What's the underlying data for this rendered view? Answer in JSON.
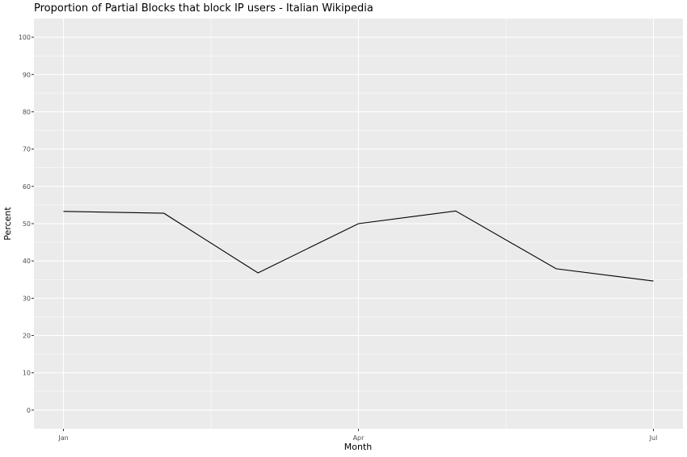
{
  "chart_data": {
    "type": "line",
    "title": "Proportion of Partial Blocks that block IP users - Italian Wikipedia",
    "xlabel": "Month",
    "ylabel": "Percent",
    "ylim": [
      -5,
      105
    ],
    "yticks": [
      "0",
      "10",
      "20",
      "30",
      "40",
      "50",
      "60",
      "70",
      "80",
      "90",
      "100"
    ],
    "xtick_labels": [
      "Jan",
      "Apr",
      "Jul"
    ],
    "x": [
      "2020-01",
      "2020-02",
      "2020-03",
      "2020-04",
      "2020-05",
      "2020-06",
      "2020-07"
    ],
    "values": [
      53.3,
      52.8,
      36.8,
      50.0,
      53.4,
      37.9,
      34.6
    ],
    "grid": true,
    "panel_color": "#ebebeb",
    "line_color": "#000000"
  }
}
